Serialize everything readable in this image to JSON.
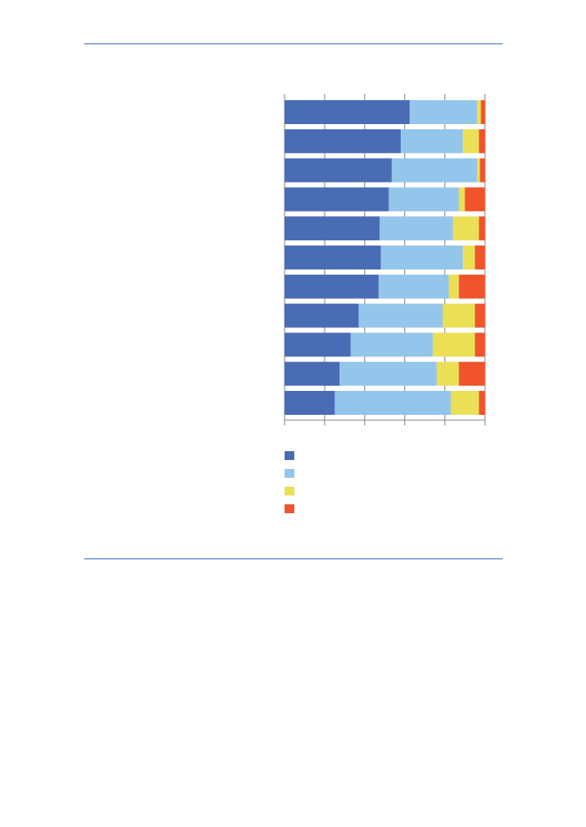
{
  "page": {
    "rule_color": "#4472c4"
  },
  "chart_data": {
    "type": "bar",
    "orientation": "horizontal",
    "stacked": true,
    "xlim": [
      0,
      100
    ],
    "ticks": [
      0,
      20,
      40,
      60,
      80,
      100
    ],
    "grid": true,
    "legend_position": "bottom-left",
    "categories": [
      "",
      "",
      "",
      "",
      "",
      "",
      "",
      "",
      "",
      "",
      ""
    ],
    "series": [
      {
        "color": "#4a6cb5",
        "values": [
          62.5,
          58,
          53.5,
          52,
          47.5,
          48,
          47,
          37,
          33,
          27.5,
          25
        ]
      },
      {
        "color": "#94c5ea",
        "values": [
          33.5,
          31,
          42.5,
          35,
          36.5,
          41,
          35,
          42,
          41,
          48.5,
          58
        ]
      },
      {
        "color": "#ebdf55",
        "values": [
          2,
          8,
          1.5,
          3,
          13,
          6,
          5,
          16,
          21,
          11,
          14
        ]
      },
      {
        "color": "#f0542c",
        "values": [
          2,
          3,
          2.5,
          10,
          3,
          5,
          13,
          5,
          5,
          13,
          3
        ]
      }
    ]
  }
}
